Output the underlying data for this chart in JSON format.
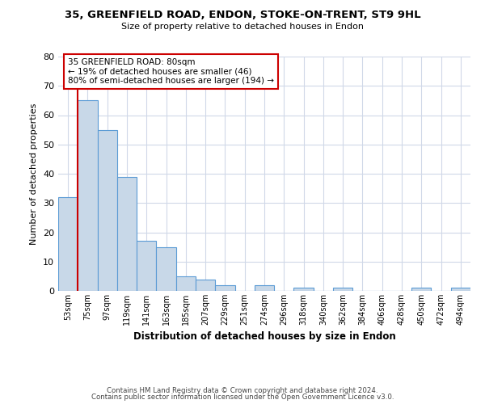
{
  "title": "35, GREENFIELD ROAD, ENDON, STOKE-ON-TRENT, ST9 9HL",
  "subtitle": "Size of property relative to detached houses in Endon",
  "xlabel": "Distribution of detached houses by size in Endon",
  "ylabel": "Number of detached properties",
  "bar_labels": [
    "53sqm",
    "75sqm",
    "97sqm",
    "119sqm",
    "141sqm",
    "163sqm",
    "185sqm",
    "207sqm",
    "229sqm",
    "251sqm",
    "274sqm",
    "296sqm",
    "318sqm",
    "340sqm",
    "362sqm",
    "384sqm",
    "406sqm",
    "428sqm",
    "450sqm",
    "472sqm",
    "494sqm"
  ],
  "bar_values": [
    32,
    65,
    55,
    39,
    17,
    15,
    5,
    4,
    2,
    0,
    2,
    0,
    1,
    0,
    1,
    0,
    0,
    0,
    1,
    0,
    1
  ],
  "bar_color": "#c8d8e8",
  "bar_edge_color": "#5b9bd5",
  "highlight_line_color": "#cc0000",
  "annotation_text": "35 GREENFIELD ROAD: 80sqm\n← 19% of detached houses are smaller (46)\n80% of semi-detached houses are larger (194) →",
  "annotation_box_color": "#ffffff",
  "annotation_box_edge_color": "#cc0000",
  "ylim": [
    0,
    80
  ],
  "yticks": [
    0,
    10,
    20,
    30,
    40,
    50,
    60,
    70,
    80
  ],
  "footer_line1": "Contains HM Land Registry data © Crown copyright and database right 2024.",
  "footer_line2": "Contains public sector information licensed under the Open Government Licence v3.0.",
  "bg_color": "#ffffff",
  "grid_color": "#d0d8e8"
}
